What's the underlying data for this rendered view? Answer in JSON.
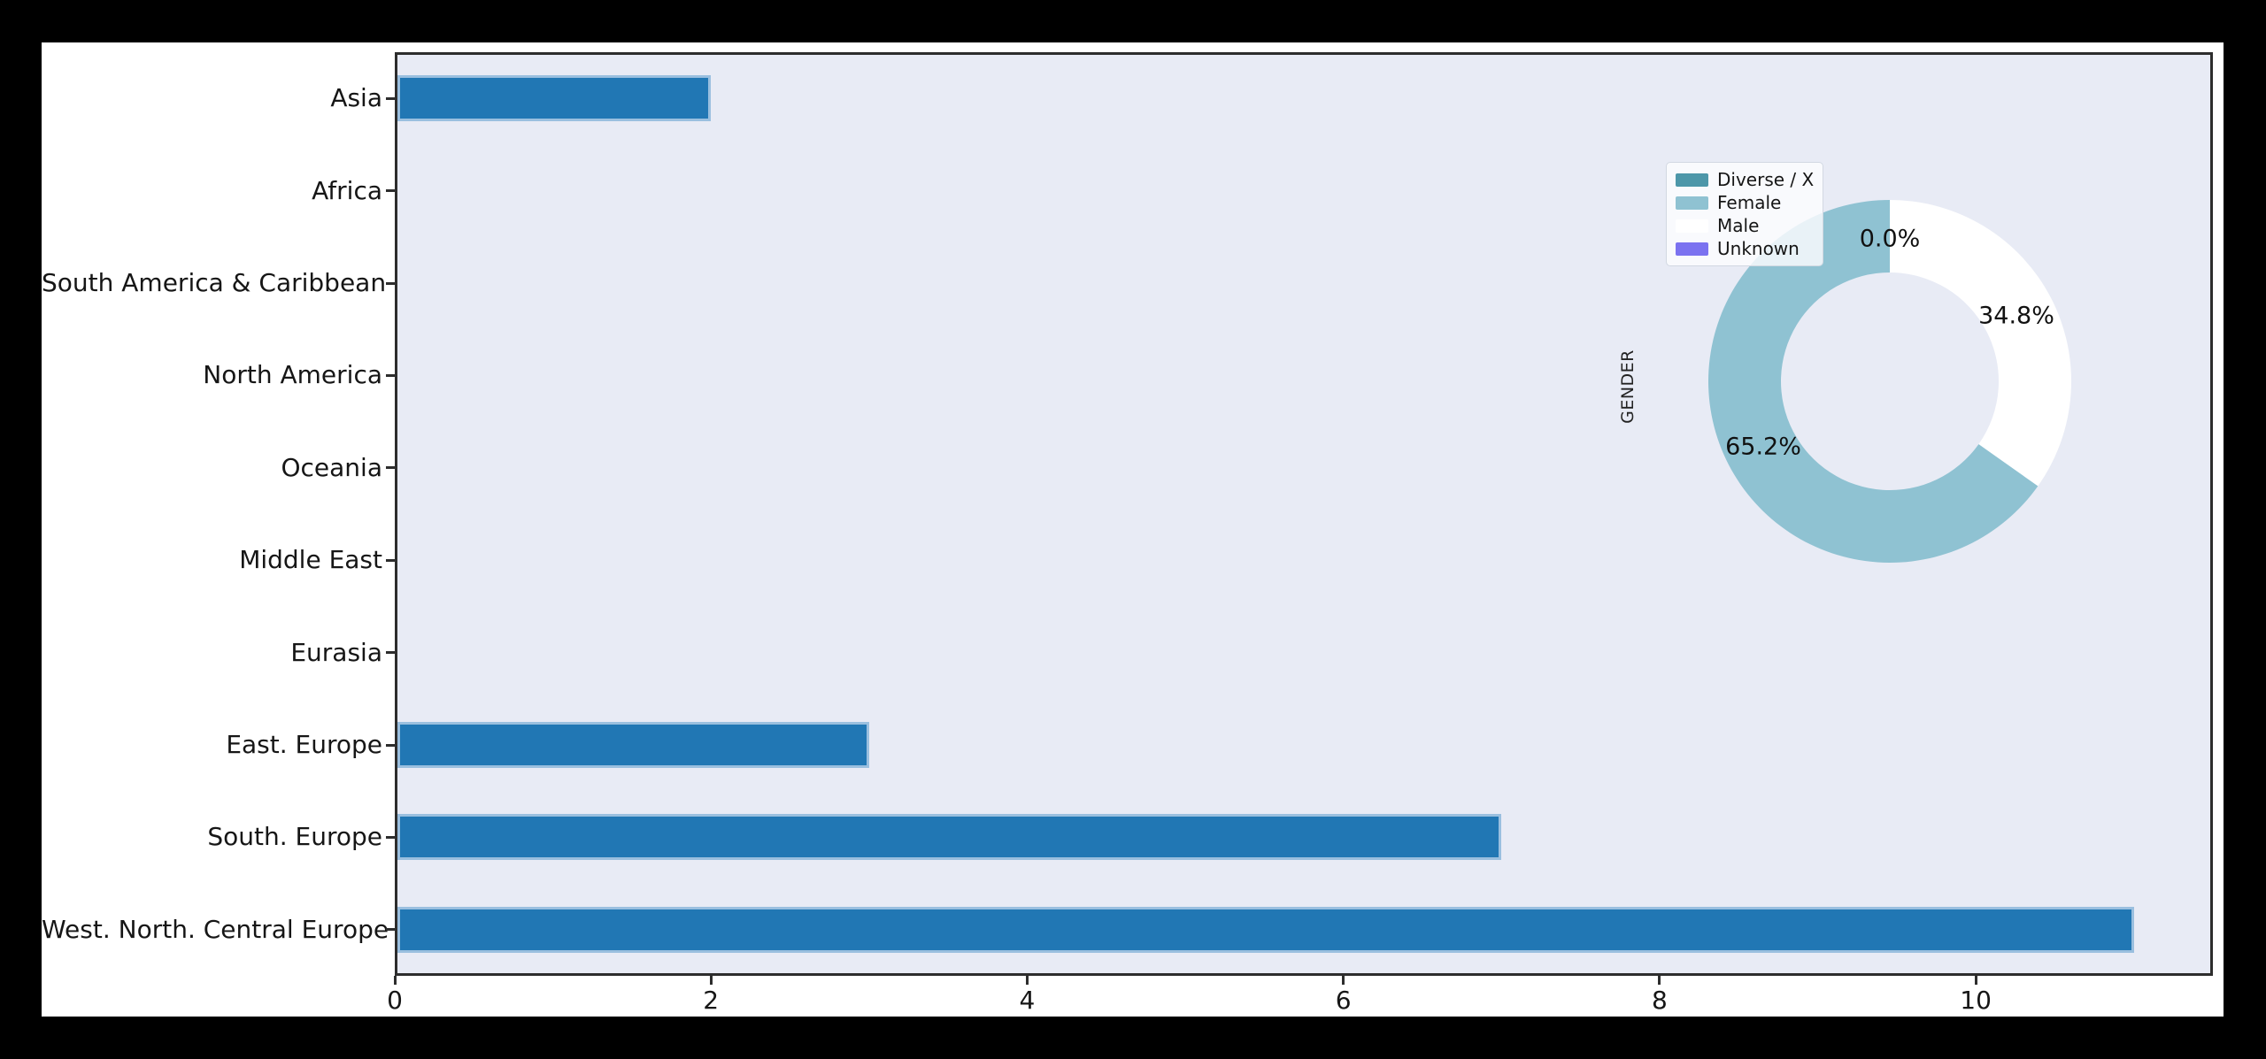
{
  "window": {
    "background": "#000000"
  },
  "figure": {
    "background": "#ffffff",
    "plot_background": "#e8ebf5",
    "axis_color": "#2d2d2d",
    "text_color": "#161616"
  },
  "chart_data": [
    {
      "type": "bar",
      "orientation": "horizontal",
      "title": "",
      "xlabel": "",
      "ylabel": "",
      "categories": [
        "Asia",
        "Africa",
        "South America & Caribbean",
        "North America",
        "Oceania",
        "Middle East",
        "Eurasia",
        "East. Europe",
        "South. Europe",
        "West. North. Central Europe"
      ],
      "values": [
        2,
        0,
        0,
        0,
        0,
        0,
        0,
        3,
        7,
        11
      ],
      "bar_color": "#2177b4",
      "bar_edge_color": "#9abfdf",
      "xlim": [
        0,
        11.5
      ],
      "xticks": [
        0,
        2,
        4,
        6,
        8,
        10
      ],
      "grid": false,
      "legend_position": "none"
    },
    {
      "type": "pie",
      "donut": true,
      "title": "",
      "ylabel": "GENDER",
      "start_angle": 90,
      "counterclock": true,
      "slices": [
        {
          "label": "Diverse / X",
          "pct": 0.0,
          "color": "#4d97a9",
          "pct_label": "0.0%"
        },
        {
          "label": "Female",
          "pct": 65.2,
          "color": "#8fc2d2",
          "pct_label": "65.2%"
        },
        {
          "label": "Male",
          "pct": 34.8,
          "color": "#ffffff",
          "pct_label": "34.8%"
        },
        {
          "label": "Unknown",
          "pct": 0.0,
          "color": "#7b72f0",
          "pct_label": null
        }
      ],
      "legend_position": "upper left"
    }
  ]
}
